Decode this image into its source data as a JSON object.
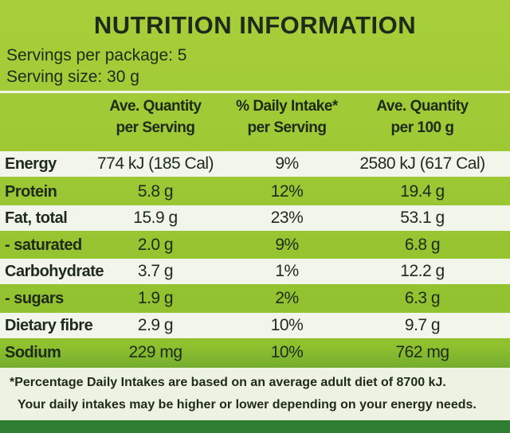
{
  "header": {
    "title": "NUTRITION INFORMATION",
    "servings_per_package": "Servings per package: 5",
    "serving_size": "Serving size: 30 g"
  },
  "table": {
    "columns": [
      [
        "Ave. Quantity",
        "per Serving"
      ],
      [
        "% Daily Intake*",
        "per Serving"
      ],
      [
        "Ave. Quantity",
        "per 100 g"
      ]
    ],
    "rows": [
      [
        "Energy",
        "774 kJ (185 Cal)",
        "9%",
        "2580 kJ (617 Cal)"
      ],
      [
        "Protein",
        "5.8 g",
        "12%",
        "19.4 g"
      ],
      [
        "Fat, total",
        "15.9 g",
        "23%",
        "53.1 g"
      ],
      [
        " - saturated",
        "2.0 g",
        "9%",
        "6.8 g"
      ],
      [
        "Carbohydrate",
        "3.7 g",
        "1%",
        "12.2 g"
      ],
      [
        " - sugars",
        "1.9 g",
        "2%",
        "6.3 g"
      ],
      [
        "Dietary fibre",
        "2.9 g",
        "10%",
        "9.7 g"
      ],
      [
        "Sodium",
        "229 mg",
        "10%",
        "762 mg"
      ]
    ]
  },
  "footnote": [
    "*Percentage Daily Intakes are based on an average adult diet of 8700 kJ.",
    "Your daily intakes may be higher or lower depending on your energy needs."
  ]
}
